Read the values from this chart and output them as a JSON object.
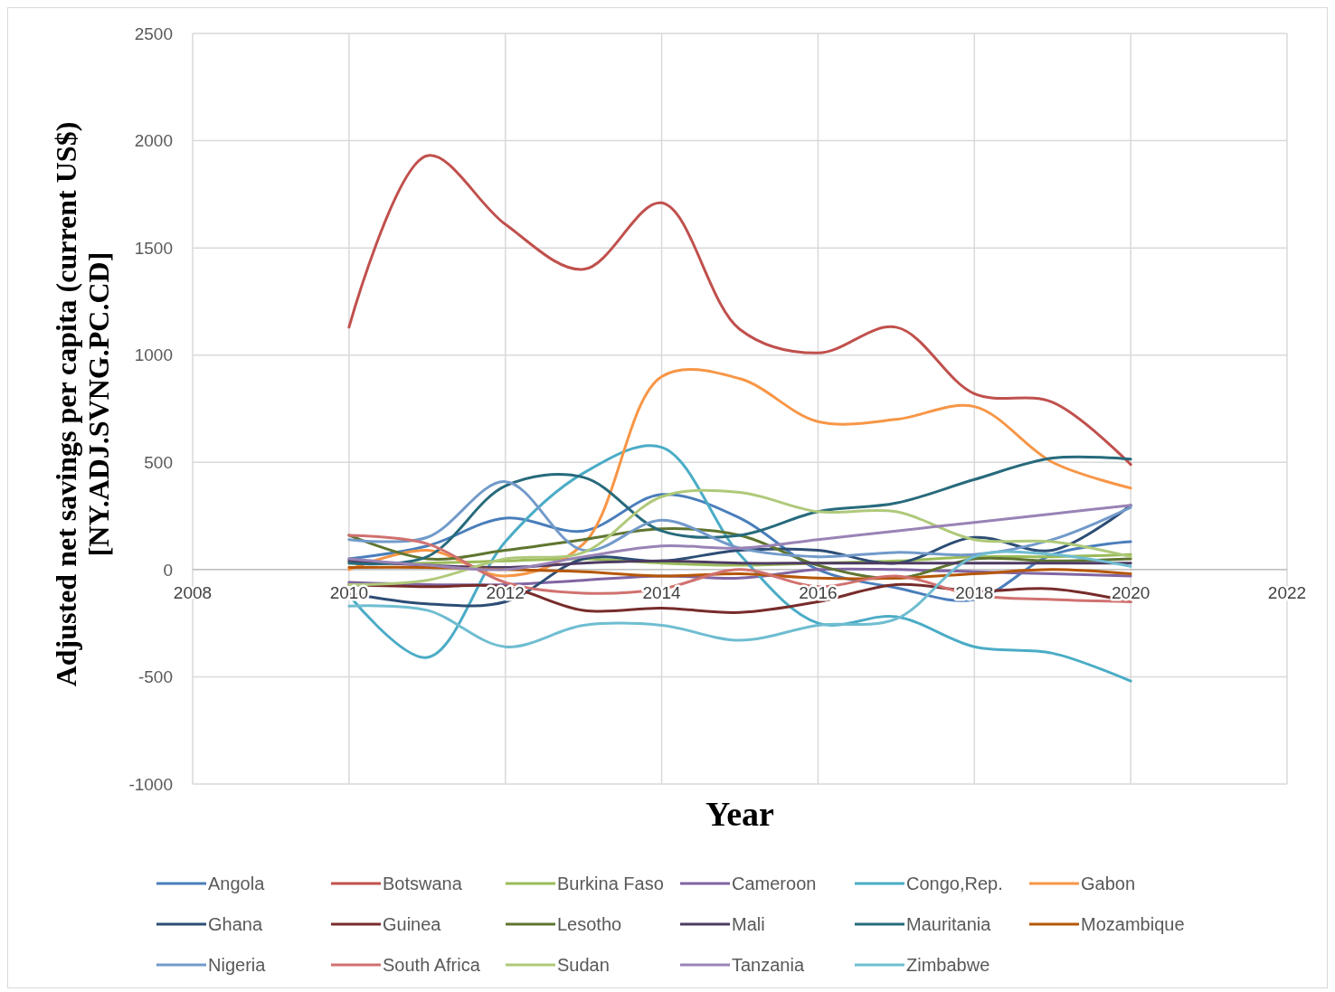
{
  "chart_data": {
    "type": "line",
    "xlabel": "Year",
    "ylabel": "Adjusted net savings per capita (current US$)\n[NY.ADJ.SVNG.PC.CD]",
    "x": [
      2010,
      2011,
      2012,
      2013,
      2014,
      2015,
      2016,
      2017,
      2018,
      2019,
      2020
    ],
    "xlim": [
      2008,
      2022
    ],
    "xticks": [
      2008,
      2010,
      2012,
      2014,
      2016,
      2018,
      2020,
      2022
    ],
    "ylim": [
      -1000,
      2500
    ],
    "yticks": [
      -1000,
      -500,
      0,
      500,
      1000,
      1500,
      2000,
      2500
    ],
    "grid": true,
    "legend": "bottom",
    "marker": "none",
    "line_style": "solid",
    "series": [
      {
        "name": "Angola",
        "color": "#4a7ebb",
        "values": [
          50,
          110,
          240,
          180,
          350,
          240,
          0,
          -85,
          -140,
          70,
          130
        ]
      },
      {
        "name": "Botswana",
        "color": "#c0504d",
        "values": [
          1130,
          1930,
          1610,
          1400,
          1710,
          1120,
          1010,
          1130,
          820,
          780,
          490
        ]
      },
      {
        "name": "Burkina Faso",
        "color": "#9bbb59",
        "values": [
          30,
          30,
          40,
          50,
          30,
          20,
          30,
          40,
          60,
          60,
          70
        ]
      },
      {
        "name": "Cameroon",
        "color": "#8064a2",
        "values": [
          -60,
          -70,
          -70,
          -50,
          -30,
          -40,
          0,
          0,
          -10,
          -20,
          -30
        ]
      },
      {
        "name": "Congo,Rep.",
        "color": "#4bacc6",
        "values": [
          -120,
          -410,
          130,
          450,
          570,
          70,
          -250,
          -220,
          -360,
          -390,
          -520
        ]
      },
      {
        "name": "Gabon",
        "color": "#f79646",
        "values": [
          0,
          90,
          -30,
          120,
          900,
          890,
          690,
          700,
          760,
          500,
          380
        ]
      },
      {
        "name": "Ghana",
        "color": "#2c4d75",
        "values": [
          -110,
          -160,
          -150,
          50,
          40,
          90,
          90,
          30,
          150,
          90,
          300
        ]
      },
      {
        "name": "Guinea",
        "color": "#772c2a",
        "values": [
          -70,
          -80,
          -80,
          -190,
          -180,
          -200,
          -150,
          -70,
          -100,
          -90,
          -150
        ]
      },
      {
        "name": "Lesotho",
        "color": "#5f7530",
        "values": [
          160,
          50,
          90,
          140,
          190,
          160,
          20,
          -40,
          50,
          40,
          50
        ]
      },
      {
        "name": "Mali",
        "color": "#4d3b62",
        "values": [
          40,
          20,
          10,
          30,
          40,
          30,
          30,
          30,
          30,
          30,
          30
        ]
      },
      {
        "name": "Mauritania",
        "color": "#276a7c",
        "values": [
          30,
          60,
          390,
          430,
          180,
          160,
          270,
          310,
          420,
          520,
          515
        ]
      },
      {
        "name": "Mozambique",
        "color": "#b65708",
        "values": [
          10,
          10,
          0,
          -10,
          -30,
          -20,
          -40,
          -40,
          -20,
          0,
          -20
        ]
      },
      {
        "name": "Nigeria",
        "color": "#729aca",
        "values": [
          140,
          150,
          410,
          90,
          230,
          100,
          60,
          80,
          70,
          140,
          290
        ]
      },
      {
        "name": "South Africa",
        "color": "#d0716f",
        "values": [
          160,
          120,
          -60,
          -110,
          -90,
          0,
          -80,
          -30,
          -120,
          -140,
          -150
        ]
      },
      {
        "name": "Sudan",
        "color": "#afc97a",
        "values": [
          -70,
          -50,
          50,
          80,
          340,
          360,
          270,
          270,
          140,
          130,
          60
        ]
      },
      {
        "name": "Tanzania",
        "color": "#9983b5",
        "values": [
          50,
          20,
          0,
          60,
          110,
          100,
          140,
          180,
          220,
          260,
          300
        ]
      },
      {
        "name": "Zimbabwe",
        "color": "#6fbdd1",
        "values": [
          -170,
          -190,
          -360,
          -260,
          -260,
          -330,
          -260,
          -230,
          60,
          70,
          15
        ]
      }
    ]
  }
}
